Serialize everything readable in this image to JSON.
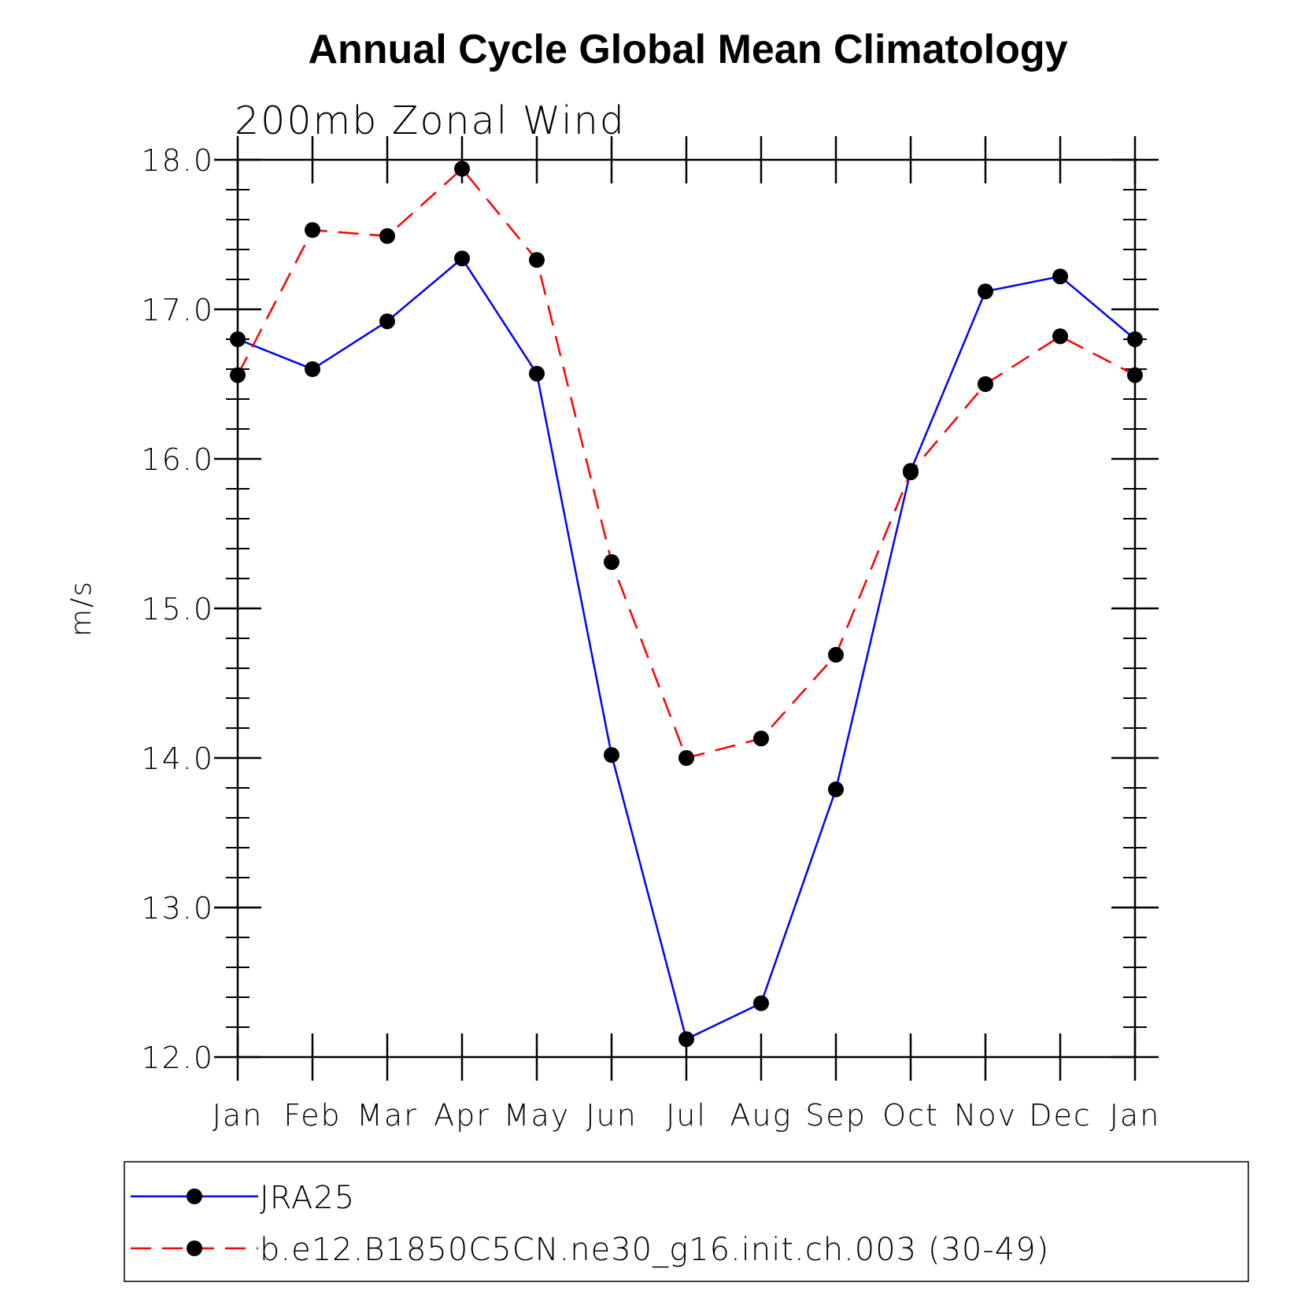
{
  "chart_data": {
    "type": "line",
    "title": "Annual Cycle Global Mean Climatology",
    "subtitle": "200mb Zonal Wind",
    "xlabel": "",
    "ylabel": "m/s",
    "categories": [
      "Jan",
      "Feb",
      "Mar",
      "Apr",
      "May",
      "Jun",
      "Jul",
      "Aug",
      "Sep",
      "Oct",
      "Nov",
      "Dec",
      "Jan"
    ],
    "ylim": [
      12.0,
      18.0
    ],
    "yticks": [
      "12.0",
      "13.0",
      "14.0",
      "15.0",
      "16.0",
      "17.0",
      "18.0"
    ],
    "grid": false,
    "legend_position": "bottom",
    "series": [
      {
        "name": "JRA25",
        "color": "#0000ff",
        "dash": "solid",
        "marker": "filled-circle",
        "values": [
          16.8,
          16.6,
          16.92,
          17.34,
          16.57,
          14.02,
          12.12,
          12.36,
          13.79,
          15.92,
          17.12,
          17.22,
          16.8
        ]
      },
      {
        "name": "b.e12.B1850C5CN.ne30_g16.init.ch.003 (30-49)",
        "color": "#ff0000",
        "dash": "dashed",
        "marker": "filled-circle",
        "values": [
          16.56,
          17.53,
          17.49,
          17.94,
          17.33,
          15.31,
          14.0,
          14.13,
          14.69,
          15.91,
          16.5,
          16.82,
          16.56
        ]
      }
    ]
  }
}
